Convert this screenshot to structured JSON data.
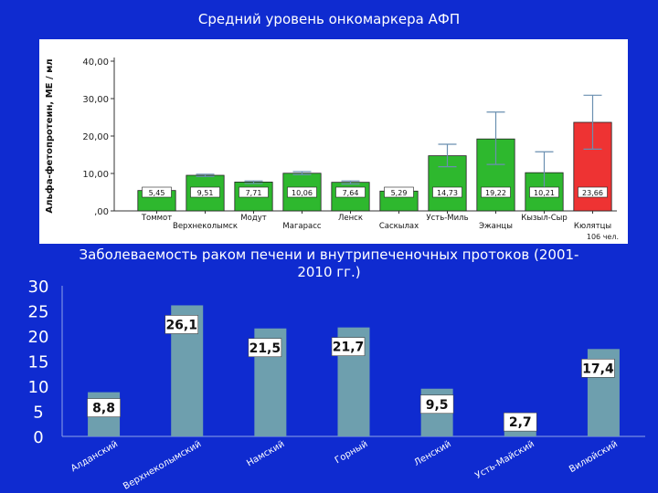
{
  "chart_data": [
    {
      "type": "bar",
      "title": "Средний уровень онкомаркера АФП",
      "ylabel": "Альфа-фетопротеин, МЕ / мл",
      "ylim": [
        0,
        40
      ],
      "yticks": [
        "40,00",
        "30,00",
        "20,00",
        "10,00",
        ",00"
      ],
      "tick_values": [
        40,
        30,
        20,
        10,
        0
      ],
      "categories": [
        "Томмот",
        "Верхнеколымск",
        "Модут",
        "Магарасс",
        "Ленск",
        "Саскылах",
        "Усть-Миль",
        "Эжанцы",
        "Кызыл-Сыр",
        "Кюлятцы"
      ],
      "values": [
        5.45,
        9.51,
        7.71,
        10.06,
        7.64,
        5.29,
        14.73,
        19.22,
        10.21,
        23.66
      ],
      "labels": [
        "5,45",
        "9,51",
        "7,71",
        "10,06",
        "7,64",
        "5,29",
        "14,73",
        "19,22",
        "10,21",
        "23,66"
      ],
      "error_low": [
        5.0,
        9.2,
        7.3,
        9.7,
        7.2,
        4.9,
        11.8,
        12.4,
        5.2,
        16.5
      ],
      "error_high": [
        5.8,
        9.8,
        8.0,
        10.5,
        8.0,
        5.7,
        17.8,
        26.4,
        15.8,
        30.9
      ],
      "colors": [
        "#2eb82e",
        "#2eb82e",
        "#2eb82e",
        "#2eb82e",
        "#2eb82e",
        "#2eb82e",
        "#2eb82e",
        "#2eb82e",
        "#2eb82e",
        "#ee3333"
      ],
      "note": "106 чел."
    },
    {
      "type": "bar",
      "title": "Заболеваемость раком печени и внутрипеченочных протоков (2001-2010 гг.)",
      "ylim": [
        0,
        30
      ],
      "yticks": [
        "30",
        "25",
        "20",
        "15",
        "10",
        "5",
        "0"
      ],
      "tick_values": [
        30,
        25,
        20,
        15,
        10,
        5,
        0
      ],
      "categories": [
        "Алданский",
        "Верхнеколымский",
        "Намский",
        "Горный",
        "Ленский",
        "Усть-Майский",
        "Вилюйский"
      ],
      "values": [
        8.8,
        26.1,
        21.5,
        21.7,
        9.5,
        2.7,
        17.4
      ],
      "labels": [
        "8,8",
        "26,1",
        "21,5",
        "21,7",
        "9,5",
        "2,7",
        "17,4"
      ],
      "bar_color": "#6e9fae"
    }
  ]
}
